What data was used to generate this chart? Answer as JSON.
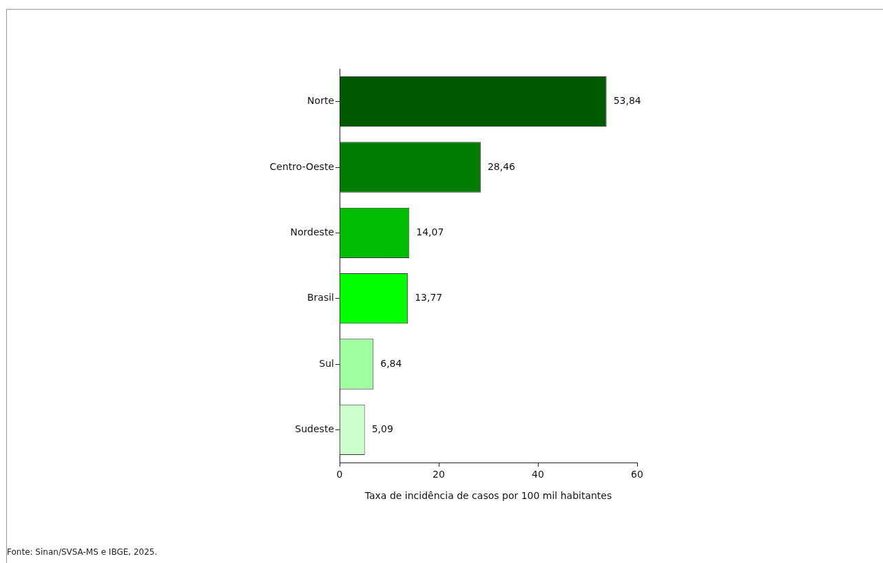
{
  "chart_data": {
    "type": "bar",
    "orientation": "horizontal",
    "categories": [
      "Norte",
      "Centro-Oeste",
      "Nordeste",
      "Brasil",
      "Sul",
      "Sudeste"
    ],
    "values": [
      53.84,
      28.46,
      14.07,
      13.77,
      6.84,
      5.09
    ],
    "colors": [
      "#005a00",
      "#007d00",
      "#00bf00",
      "#00ff00",
      "#a0ffa0",
      "#ccffcc"
    ],
    "value_labels": [
      "53,84",
      "28,46",
      "14,07",
      "13,77",
      "6,84",
      "5,09"
    ],
    "xlabel": "Taxa de incidência de casos por 100 mil habitantes",
    "xlim": [
      0,
      60
    ],
    "xticks": [
      0,
      20,
      40,
      60
    ],
    "grid": false,
    "legend": false,
    "annotations": [
      "Fonte: Sinan/SVSA-MS e IBGE, 2025."
    ]
  }
}
